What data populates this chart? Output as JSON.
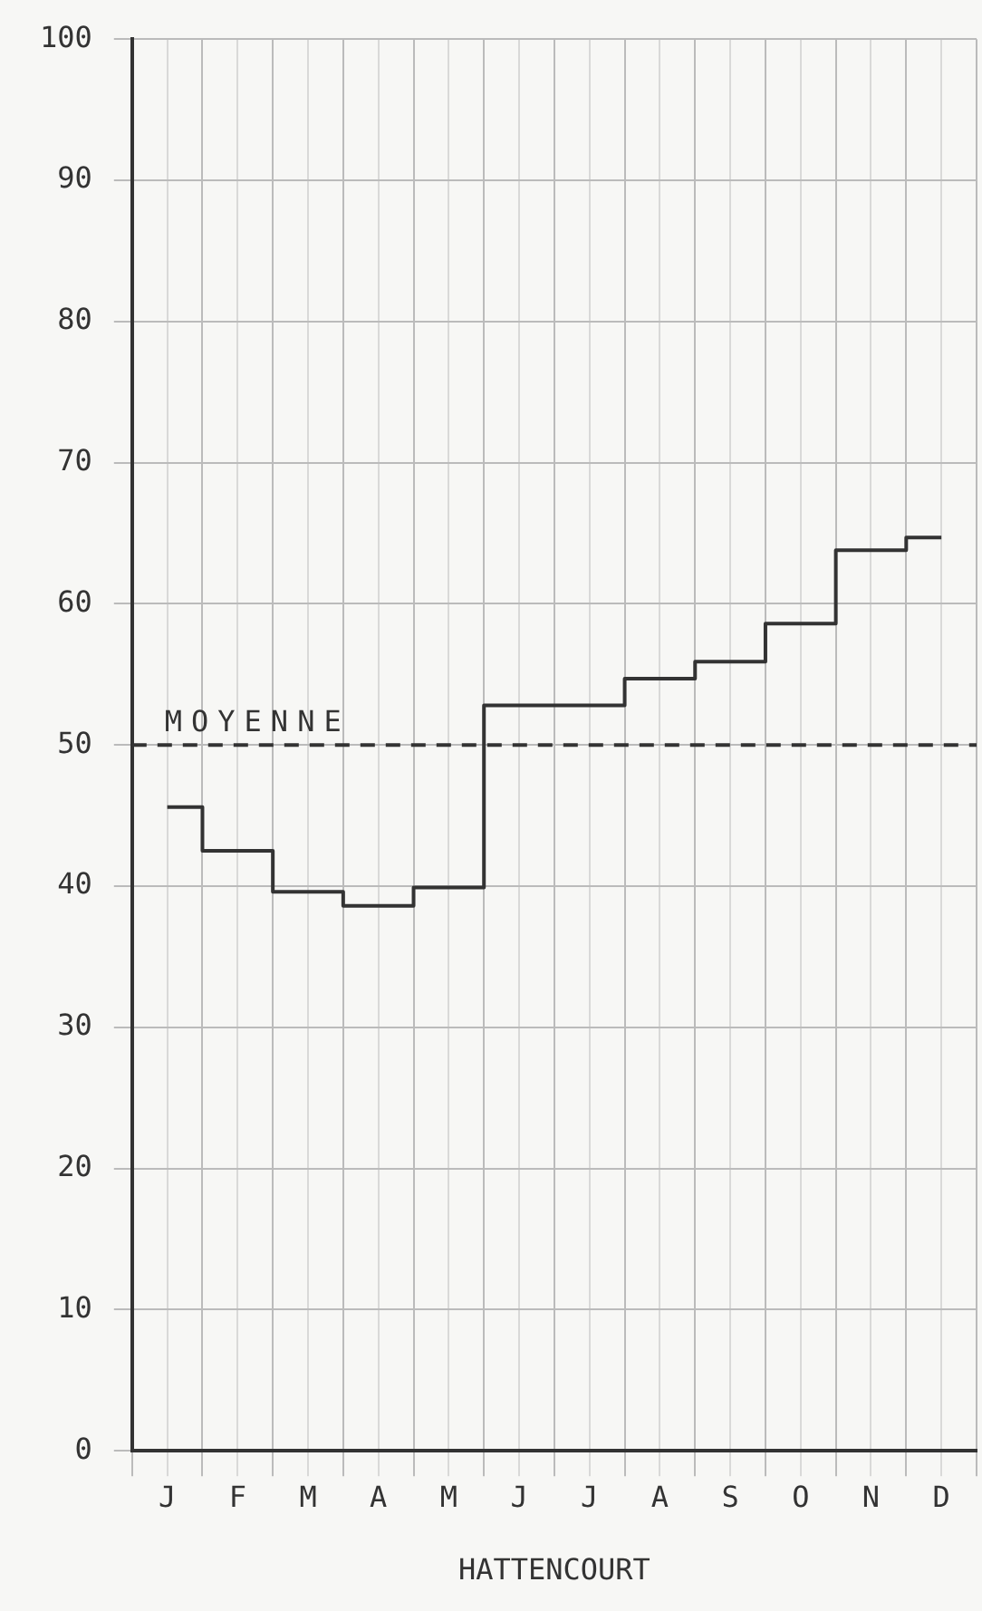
{
  "chart_data": {
    "type": "step",
    "xlabel": "HATTENCOURT",
    "categories": [
      "J",
      "F",
      "M",
      "A",
      "M",
      "J",
      "J",
      "A",
      "S",
      "O",
      "N",
      "D"
    ],
    "series": [
      {
        "color": "#333333",
        "values": [
          45.6,
          42.5,
          39.6,
          38.6,
          39.9,
          52.8,
          52.8,
          54.7,
          55.9,
          58.6,
          63.8,
          64.7
        ]
      }
    ],
    "ylim": [
      0,
      100
    ],
    "yticks": [
      0,
      10,
      20,
      30,
      40,
      50,
      60,
      70,
      80,
      90,
      100
    ],
    "grid": true,
    "marker": "none",
    "line_style": "solid",
    "ref_lines": [
      {
        "axis": "y",
        "value": 50,
        "label": "MOYENNE",
        "color": "#333333",
        "line_style": "dashed"
      }
    ]
  }
}
